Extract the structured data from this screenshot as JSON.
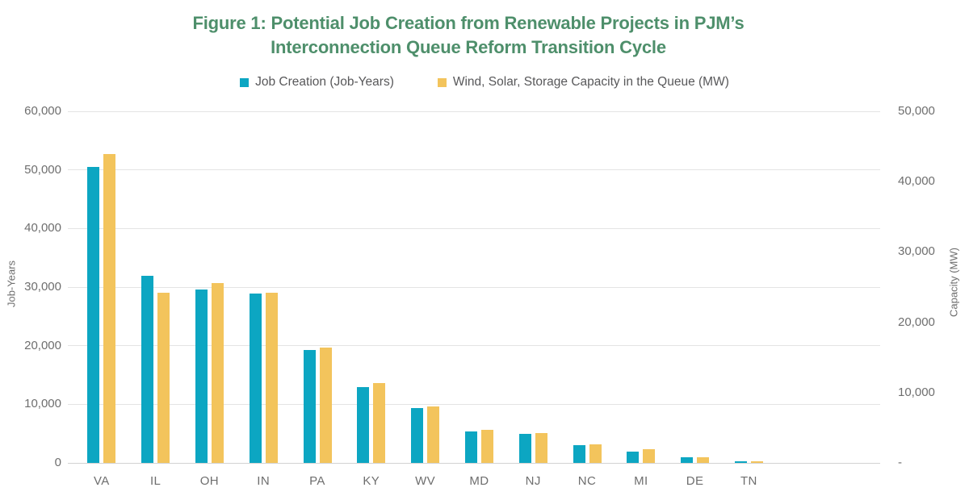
{
  "figure": {
    "title_line1": "Figure 1: Potential Job Creation from Renewable Projects in PJM’s",
    "title_line2": "Interconnection Queue Reform Transition Cycle",
    "title_color": "#4e8f6b"
  },
  "chart_data": {
    "type": "bar",
    "title": "Figure 1: Potential Job Creation from Renewable Projects in PJM’s Interconnection Queue Reform Transition Cycle",
    "categories": [
      "VA",
      "IL",
      "OH",
      "IN",
      "PA",
      "KY",
      "WV",
      "MD",
      "NJ",
      "NC",
      "MI",
      "DE",
      "TN"
    ],
    "series": [
      {
        "name": "Job Creation (Job-Years)",
        "axis": "left",
        "color": "#0ca6c2",
        "values": [
          50500,
          31900,
          29600,
          28900,
          19200,
          12900,
          9400,
          5400,
          5000,
          3000,
          1900,
          1000,
          300
        ]
      },
      {
        "name": "Wind, Solar, Storage Capacity in the Queue (MW)",
        "axis": "right",
        "color": "#f3c45c",
        "values": [
          43900,
          24200,
          25600,
          24200,
          16400,
          11300,
          8000,
          4700,
          4300,
          2600,
          1900,
          800,
          200
        ]
      }
    ],
    "left_axis": {
      "label": "Job-Years",
      "min": 0,
      "max": 60000,
      "tick_step": 10000,
      "tick_values": [
        0,
        10000,
        20000,
        30000,
        40000,
        50000,
        60000
      ]
    },
    "right_axis": {
      "label": "Capacity (MW)",
      "min": 0,
      "max": 50000,
      "tick_step": 10000,
      "tick_values": [
        0,
        10000,
        20000,
        30000,
        40000,
        50000
      ],
      "zero_label": "-"
    },
    "grid": "horizontal",
    "legend_position": "top",
    "gridline_color": "#e4e4e4"
  }
}
